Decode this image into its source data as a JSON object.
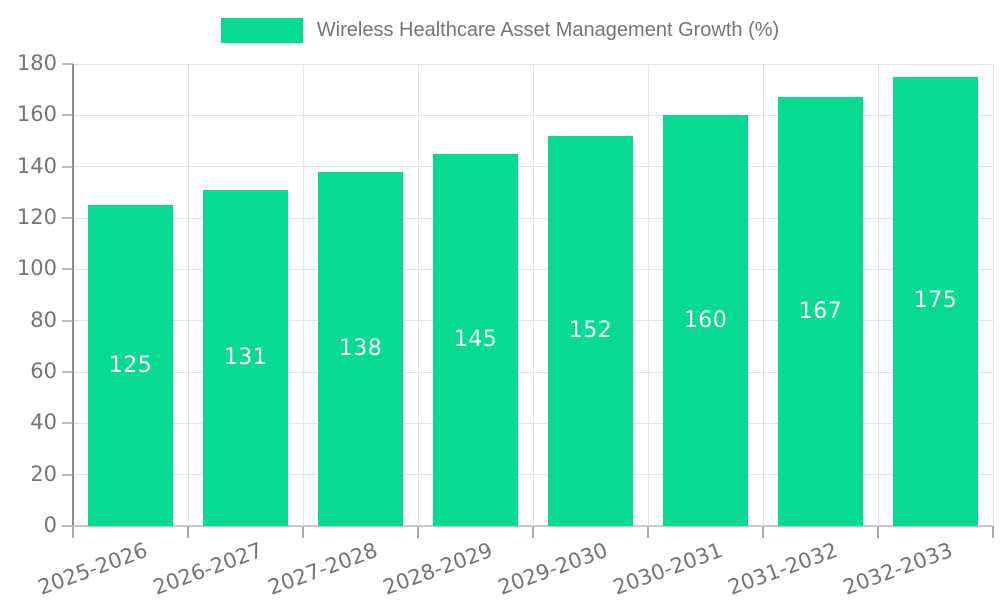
{
  "legend": {
    "label": "Wireless Healthcare Asset Management Growth (%)",
    "swatch_color": "#06DA93"
  },
  "chart_data": {
    "type": "bar",
    "title": "Wireless Healthcare Asset Management Growth (%)",
    "categories": [
      "2025-2026",
      "2026-2027",
      "2027-2028",
      "2028-2029",
      "2029-2030",
      "2030-2031",
      "2031-2032",
      "2032-2033"
    ],
    "values": [
      125,
      131,
      138,
      145,
      152,
      160,
      167,
      175
    ],
    "xlabel": "",
    "ylabel": "",
    "ylim": [
      0,
      180
    ],
    "yticks": [
      0,
      20,
      40,
      60,
      80,
      100,
      120,
      140,
      160,
      180
    ],
    "grid": true,
    "legend_position": "top",
    "bar_color": "#06DA93",
    "value_label_color": "#FFFFFF",
    "axis_text_color": "#757575",
    "grid_color": "#E3E3E3",
    "axis_line_color": "#909090",
    "x_label_rotation_deg": -20
  }
}
